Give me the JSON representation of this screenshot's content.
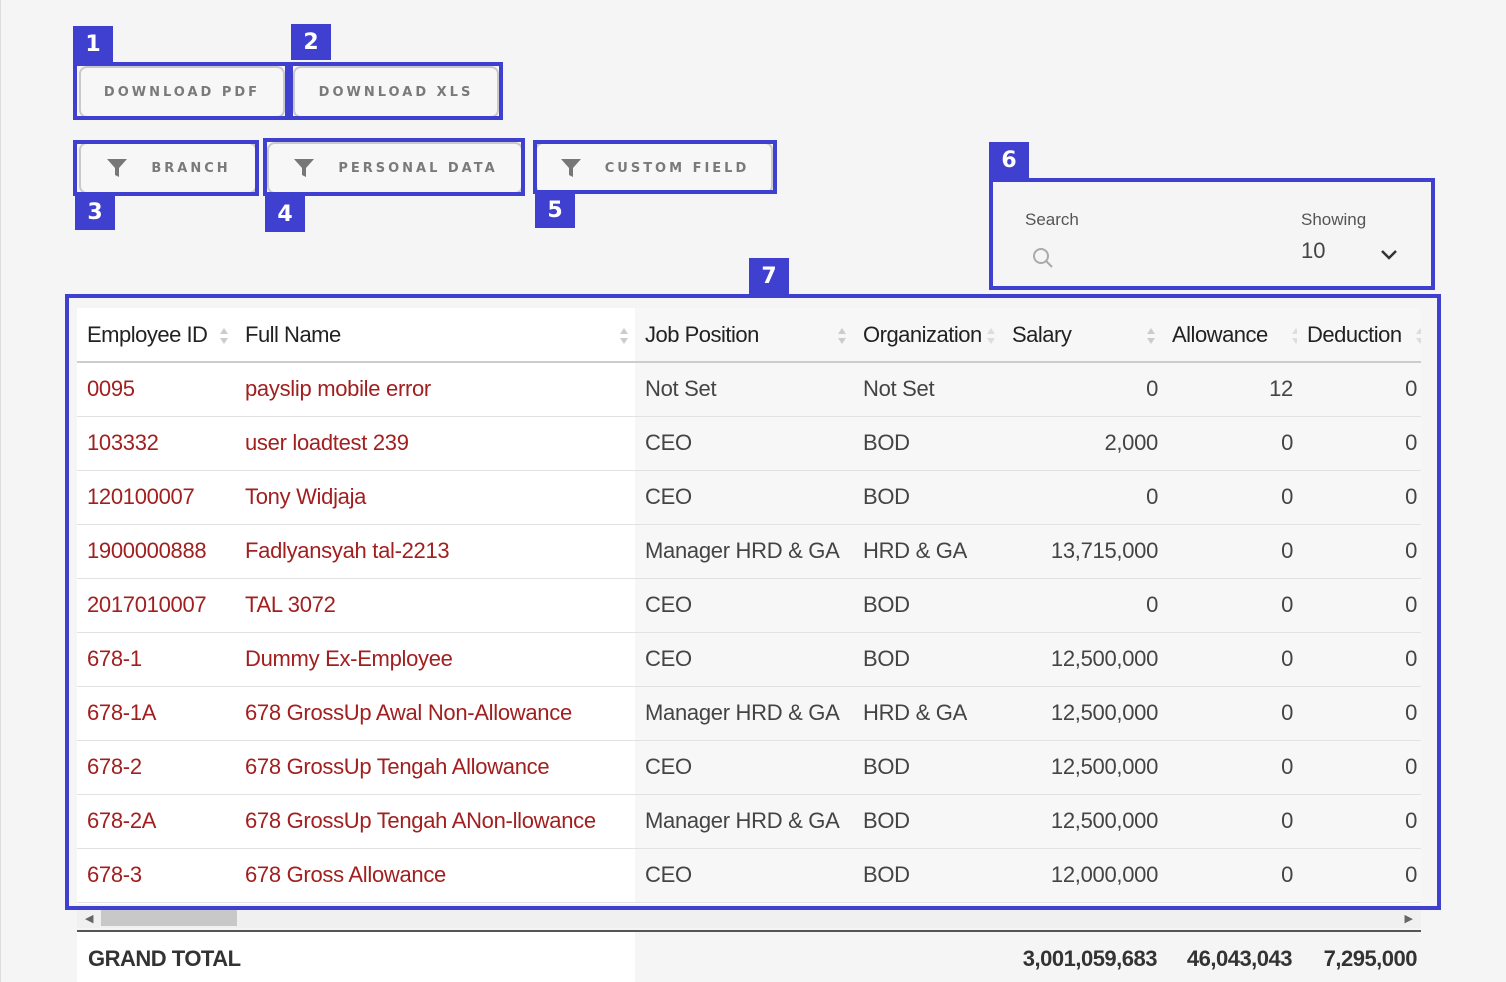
{
  "toolbar": {
    "download_pdf": "DOWNLOAD PDF",
    "download_xls": "DOWNLOAD XLS"
  },
  "filters": {
    "branch": "BRANCH",
    "personal_data": "PERSONAL DATA",
    "custom_field": "CUSTOM FIELD"
  },
  "search": {
    "label": "Search",
    "placeholder": ""
  },
  "showing": {
    "label": "Showing",
    "value": "10"
  },
  "annotations": [
    "1",
    "2",
    "3",
    "4",
    "5",
    "6",
    "7"
  ],
  "table": {
    "headers": [
      "Employee ID",
      "Full Name",
      "Job Position",
      "Organization",
      "Salary",
      "Allowance",
      "Deduction"
    ],
    "rows": [
      [
        "0095",
        "payslip mobile error",
        "Not Set",
        "Not Set",
        "0",
        "12",
        "0"
      ],
      [
        "103332",
        "user loadtest 239",
        "CEO",
        "BOD",
        "2,000",
        "0",
        "0"
      ],
      [
        "120100007",
        "Tony Widjaja",
        "CEO",
        "BOD",
        "0",
        "0",
        "0"
      ],
      [
        "1900000888",
        "Fadlyansyah tal-2213",
        "Manager HRD & GA",
        "HRD & GA",
        "13,715,000",
        "0",
        "0"
      ],
      [
        "2017010007",
        "TAL 3072",
        "CEO",
        "BOD",
        "0",
        "0",
        "0"
      ],
      [
        "678-1",
        "Dummy Ex-Employee",
        "CEO",
        "BOD",
        "12,500,000",
        "0",
        "0"
      ],
      [
        "678-1A",
        "678 GrossUp Awal Non-Allowance",
        "Manager HRD & GA",
        "HRD & GA",
        "12,500,000",
        "0",
        "0"
      ],
      [
        "678-2",
        "678 GrossUp Tengah Allowance",
        "CEO",
        "BOD",
        "12,500,000",
        "0",
        "0"
      ],
      [
        "678-2A",
        "678 GrossUp Tengah ANon-llowance",
        "Manager HRD & GA",
        "BOD",
        "12,500,000",
        "0",
        "0"
      ],
      [
        "678-3",
        "678 Gross Allowance",
        "CEO",
        "BOD",
        "12,000,000",
        "0",
        "0"
      ]
    ]
  },
  "totals": {
    "label": "GRAND TOTAL",
    "salary": "3,001,059,683",
    "allowance": "46,043,043",
    "deduction": "7,295,000"
  },
  "colors": {
    "highlight": "#3f3fd0",
    "link": "#a11f1f"
  }
}
